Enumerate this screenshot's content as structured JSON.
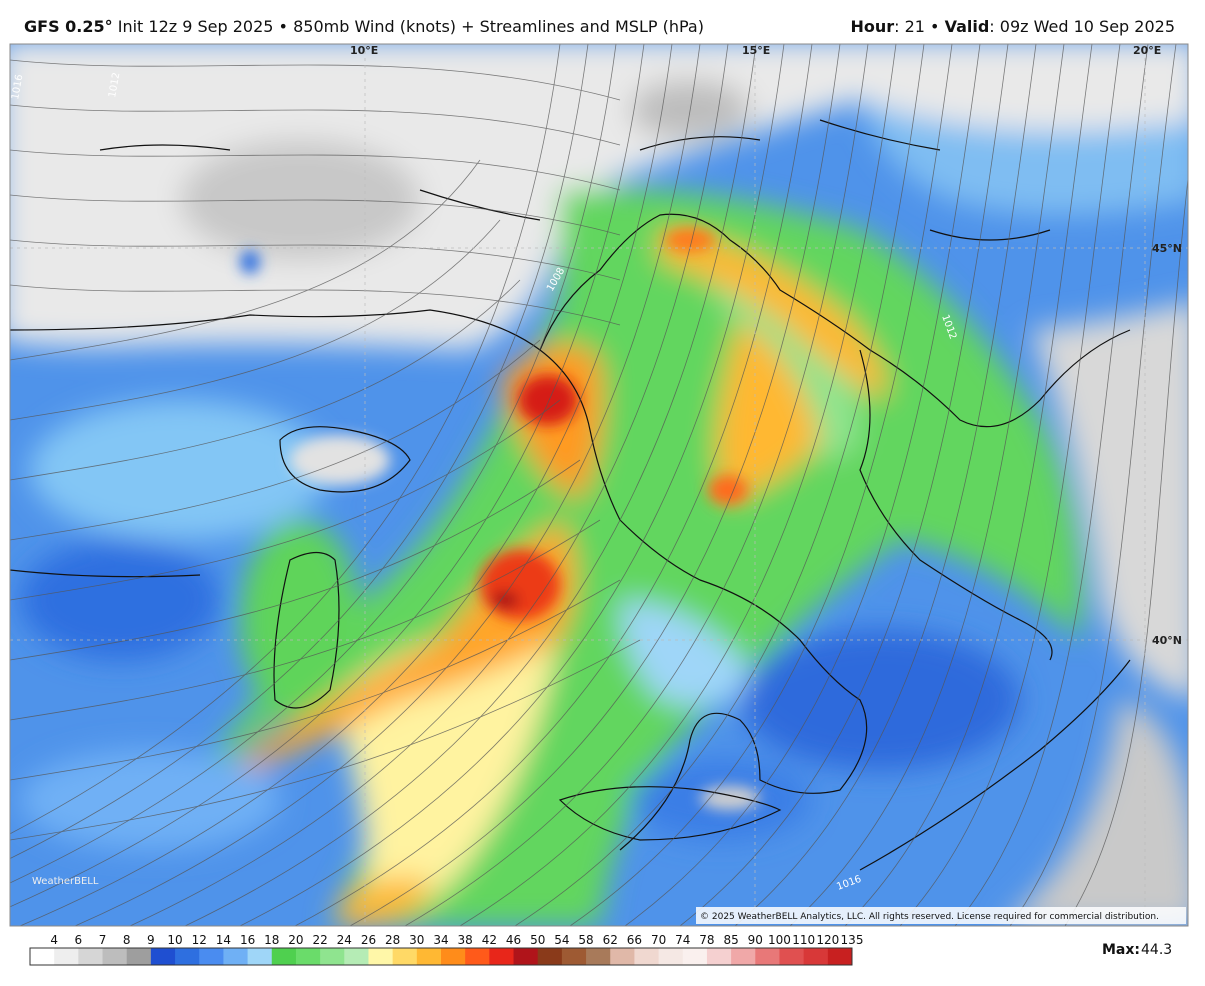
{
  "header": {
    "model": "GFS 0.25°",
    "description": "Init 12z 9 Sep 2025 • 850mb Wind (knots) + Streamlines and MSLP (hPa)",
    "right_parts": [
      "Hour",
      ": 21 • ",
      "Valid",
      ": 09z Wed 10 Sep 2025"
    ]
  },
  "map": {
    "lon_labels": [
      "10°E",
      "15°E",
      "20°E"
    ],
    "lat_labels": [
      "45°N",
      "40°N"
    ],
    "isobar_labels": [
      "1016",
      "1012",
      "1012",
      "1008",
      "1016"
    ],
    "watermark": "WeatherBELL",
    "copyright": "© 2025 WeatherBELL Analytics, LLC. All rights reserved. License required for commercial distribution."
  },
  "colorbar": {
    "ticks": [
      4,
      6,
      7,
      8,
      9,
      10,
      12,
      14,
      16,
      18,
      20,
      22,
      24,
      26,
      28,
      30,
      34,
      38,
      42,
      46,
      50,
      54,
      58,
      62,
      66,
      70,
      74,
      78,
      85,
      90,
      100,
      110,
      120,
      135
    ],
    "colors": [
      "#ffffff",
      "#eeeeee",
      "#d6d6d6",
      "#bdbdbd",
      "#9e9e9e",
      "#1f4fd1",
      "#2e6fe0",
      "#4a8cf0",
      "#6fb0f5",
      "#9fd6f8",
      "#4fd04f",
      "#6adc6a",
      "#8fe48f",
      "#b5ecb5",
      "#fff7a8",
      "#ffd966",
      "#ffb833",
      "#ff8c1a",
      "#ff5a1a",
      "#e8261a",
      "#b0141a",
      "#8a3a1a",
      "#9e5a33",
      "#a87a5a",
      "#e0b8a8",
      "#f0d8d0",
      "#f5e8e4",
      "#faf0ee",
      "#f5d0d0",
      "#f0a8a8",
      "#e87878",
      "#e05050",
      "#d83838",
      "#c82020"
    ]
  },
  "footer": {
    "max_label": "Max:",
    "max_value": 44.3
  }
}
